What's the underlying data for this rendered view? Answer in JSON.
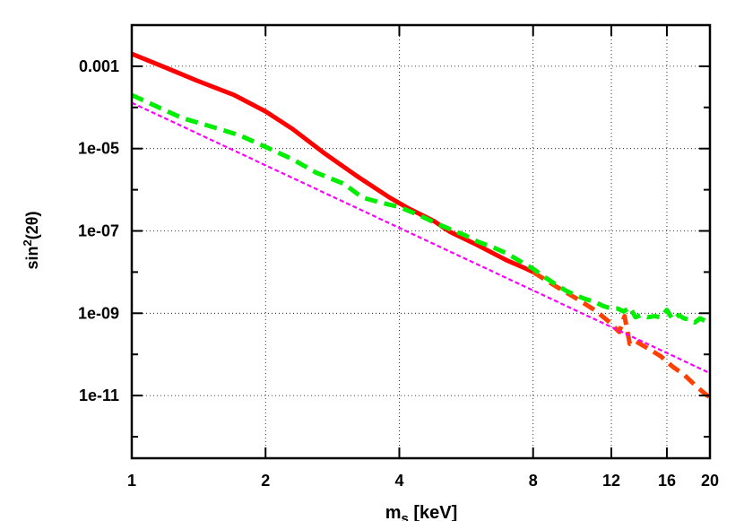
{
  "chart_data": {
    "type": "line",
    "x_scale": "log",
    "y_scale": "log",
    "xlim": [
      1,
      20
    ],
    "ylim": [
      3e-13,
      0.01
    ],
    "grid": true,
    "x_ticks": [
      {
        "value": 1,
        "label": "1"
      },
      {
        "value": 2,
        "label": "2"
      },
      {
        "value": 4,
        "label": "4"
      },
      {
        "value": 8,
        "label": "8"
      },
      {
        "value": 12,
        "label": "12"
      },
      {
        "value": 16,
        "label": "16"
      },
      {
        "value": 20,
        "label": "20"
      }
    ],
    "y_ticks": [
      {
        "value": 0.001,
        "label": "0.001"
      },
      {
        "value": 1e-05,
        "label": "1e-05"
      },
      {
        "value": 1e-07,
        "label": "1e-07"
      },
      {
        "value": 1e-09,
        "label": "1e-09"
      },
      {
        "value": 1e-11,
        "label": "1e-11"
      }
    ],
    "xlabel": {
      "main": "m",
      "sub": "s",
      "rest": " [keV]"
    },
    "ylabel": {
      "main": "sin",
      "sup": "2",
      "rest": "(2θ)"
    },
    "series": [
      {
        "color": "#ff0000",
        "style": "solid",
        "x": [
          1,
          1.2,
          1.4,
          1.7,
          2,
          2.3,
          2.7,
          3.2,
          3.8,
          4.2,
          4.8,
          5.2,
          6,
          7,
          7.6,
          8
        ],
        "y": [
          0.002,
          0.0009,
          0.00045,
          0.0002,
          8e-05,
          3e-05,
          8e-06,
          2.2e-06,
          6.5e-07,
          3.5e-07,
          1.7e-07,
          9.5e-08,
          4.5e-08,
          1.9e-08,
          1.3e-08,
          1e-08
        ]
      },
      {
        "color": "#ff4000",
        "style": "dashed",
        "x": [
          8,
          9,
          10,
          11,
          11.8,
          12.5,
          12.85,
          13.2,
          13.6,
          14.5,
          15.5,
          16.5,
          17.5,
          18.5,
          19.5,
          20
        ],
        "y": [
          1e-08,
          4.5e-09,
          2.3e-09,
          1.2e-09,
          6.5e-10,
          3.5e-10,
          8.5e-10,
          1.8e-10,
          2.1e-10,
          1.4e-10,
          9e-11,
          5e-11,
          3.2e-11,
          1.8e-11,
          1.1e-11,
          9e-12
        ]
      },
      {
        "color": "#00ee00",
        "style": "dashed",
        "x": [
          1,
          1.15,
          1.3,
          1.5,
          1.75,
          2,
          2.3,
          2.6,
          3,
          3.3,
          3.6,
          4,
          4.4,
          4.8,
          5.2,
          5.6,
          6,
          6.5,
          7,
          7.5,
          8,
          8.5,
          9,
          9.5,
          10,
          10.5,
          11,
          11.5,
          12,
          12.4,
          12.8,
          13.2,
          13.6,
          14,
          14.5,
          15,
          15.5,
          16,
          16.5,
          17,
          17.5,
          18,
          18.5,
          19,
          19.5,
          20
        ],
        "y": [
          0.0002,
          0.0001,
          5.5e-05,
          3.5e-05,
          2.1e-05,
          1.1e-05,
          5.5e-06,
          2.6e-06,
          1.4e-06,
          6.5e-07,
          5e-07,
          3.8e-07,
          2.5e-07,
          1.6e-07,
          1.1e-07,
          8e-08,
          5.5e-08,
          4e-08,
          2.8e-08,
          1.8e-08,
          1.2e-08,
          7.5e-09,
          5e-09,
          3.5e-09,
          2.7e-09,
          2.2e-09,
          1.9e-09,
          1.5e-09,
          1.3e-09,
          1.3e-09,
          1.1e-09,
          1.4e-09,
          8e-10,
          9e-10,
          8e-10,
          8.5e-10,
          8e-10,
          1.2e-09,
          7e-10,
          9e-10,
          7.5e-10,
          7e-10,
          6e-10,
          7.5e-10,
          6.5e-10,
          7.5e-10
        ]
      },
      {
        "color": "#ff00ff",
        "style": "dotted",
        "x": [
          1,
          20
        ],
        "y": [
          0.00013,
          3.5e-11
        ]
      }
    ]
  }
}
